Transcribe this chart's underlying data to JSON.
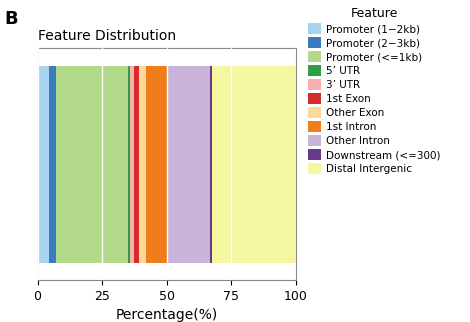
{
  "title": "Feature Distribution",
  "panel_label": "B",
  "xlabel": "Percentage(%)",
  "features": [
    "Promoter (1−2kb)",
    "Promoter (2−3kb)",
    "Promoter (<=1kb)",
    "5’ UTR",
    "3’ UTR",
    "1st Exon",
    "Other Exon",
    "1st Intron",
    "Other Intron",
    "Downstream (<=300)",
    "Distal Intergenic"
  ],
  "values": [
    4.5,
    2.5,
    28.0,
    0.8,
    1.5,
    2.0,
    2.5,
    8.5,
    16.5,
    0.7,
    32.5
  ],
  "colors": [
    "#a8d4f0",
    "#3b7bbf",
    "#b2d98a",
    "#2e9e3e",
    "#f7b0b0",
    "#d42b2b",
    "#fcd89a",
    "#f07d1a",
    "#c9b3d9",
    "#6a3a8a",
    "#f5f7a0"
  ],
  "xlim": [
    0,
    100
  ],
  "xticks": [
    0,
    25,
    50,
    75,
    100
  ],
  "legend_title": "Feature",
  "figsize": [
    4.7,
    3.22
  ],
  "dpi": 100
}
